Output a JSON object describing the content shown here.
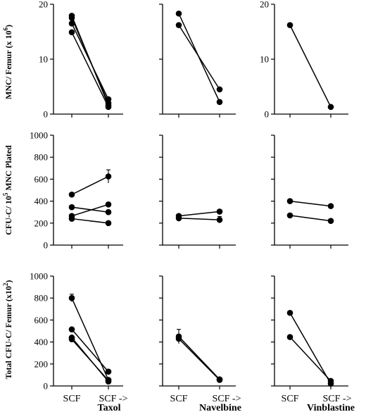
{
  "row_labels": {
    "mnc": "MNC/ Femur (x 10",
    "mnc_exp": "6",
    "mnc_close": ")",
    "cfu": "CFU-C/ 10",
    "cfu_exp": "5",
    "cfu_rest": " MNC Plated",
    "total": "Total CFU-C/ Femur (x10",
    "total_exp": "2",
    "total_close": ")"
  },
  "x_labels": {
    "before": "SCF",
    "after": "SCF ->"
  },
  "drug_labels": [
    "Taxol",
    "Navelbine",
    "Vinblastine"
  ],
  "chart_data": [
    {
      "type": "line",
      "row": 0,
      "col": 0,
      "x": [
        "SCF",
        "SCF -> Taxol"
      ],
      "ylim": [
        0,
        20
      ],
      "yticks": [
        0,
        10,
        20
      ],
      "series": [
        {
          "values": [
            17.9,
            1.6
          ]
        },
        {
          "values": [
            17.5,
            2.0
          ]
        },
        {
          "values": [
            16.5,
            2.7
          ]
        },
        {
          "values": [
            14.9,
            1.3
          ]
        }
      ]
    },
    {
      "type": "line",
      "row": 0,
      "col": 1,
      "x": [
        "SCF",
        "SCF -> Navelbine"
      ],
      "ylim": [
        0,
        20
      ],
      "series": [
        {
          "values": [
            18.3,
            2.2
          ]
        },
        {
          "values": [
            16.2,
            4.5
          ]
        }
      ]
    },
    {
      "type": "line",
      "row": 0,
      "col": 2,
      "x": [
        "SCF",
        "SCF -> Vinblastine"
      ],
      "ylim": [
        0,
        20
      ],
      "yticks": [
        0,
        10,
        20
      ],
      "series": [
        {
          "values": [
            16.2,
            1.3
          ]
        }
      ]
    },
    {
      "type": "line",
      "row": 1,
      "col": 0,
      "x": [
        "SCF",
        "SCF -> Taxol"
      ],
      "ylim": [
        0,
        1000
      ],
      "yticks": [
        0,
        200,
        400,
        600,
        800,
        1000
      ],
      "series": [
        {
          "values": [
            460,
            625
          ],
          "errors": [
            0,
            60
          ]
        },
        {
          "values": [
            345,
            300
          ]
        },
        {
          "values": [
            265,
            370
          ]
        },
        {
          "values": [
            240,
            200
          ]
        }
      ]
    },
    {
      "type": "line",
      "row": 1,
      "col": 1,
      "x": [
        "SCF",
        "SCF -> Navelbine"
      ],
      "ylim": [
        0,
        1000
      ],
      "series": [
        {
          "values": [
            265,
            305
          ]
        },
        {
          "values": [
            245,
            230
          ],
          "errors": [
            30,
            30
          ]
        }
      ]
    },
    {
      "type": "line",
      "row": 1,
      "col": 2,
      "x": [
        "SCF",
        "SCF -> Vinblastine"
      ],
      "ylim": [
        0,
        1000
      ],
      "series": [
        {
          "values": [
            400,
            355
          ]
        },
        {
          "values": [
            270,
            220
          ]
        }
      ]
    },
    {
      "type": "line",
      "row": 2,
      "col": 0,
      "x": [
        "SCF",
        "SCF -> Taxol"
      ],
      "ylim": [
        0,
        1000
      ],
      "yticks": [
        0,
        200,
        400,
        600,
        800,
        1000
      ],
      "series": [
        {
          "values": [
            800,
            55
          ],
          "errors": [
            35,
            0
          ]
        },
        {
          "values": [
            515,
            130
          ]
        },
        {
          "values": [
            440,
            40
          ]
        },
        {
          "values": [
            425,
            50
          ]
        }
      ]
    },
    {
      "type": "line",
      "row": 2,
      "col": 1,
      "x": [
        "SCF",
        "SCF -> Navelbine"
      ],
      "ylim": [
        0,
        1000
      ],
      "series": [
        {
          "values": [
            450,
            60
          ],
          "errors": [
            65,
            10
          ]
        },
        {
          "values": [
            430,
            55
          ]
        }
      ]
    },
    {
      "type": "line",
      "row": 2,
      "col": 2,
      "x": [
        "SCF",
        "SCF -> Vinblastine"
      ],
      "ylim": [
        0,
        1000
      ],
      "series": [
        {
          "values": [
            665,
            20
          ]
        },
        {
          "values": [
            445,
            45
          ]
        }
      ]
    }
  ]
}
